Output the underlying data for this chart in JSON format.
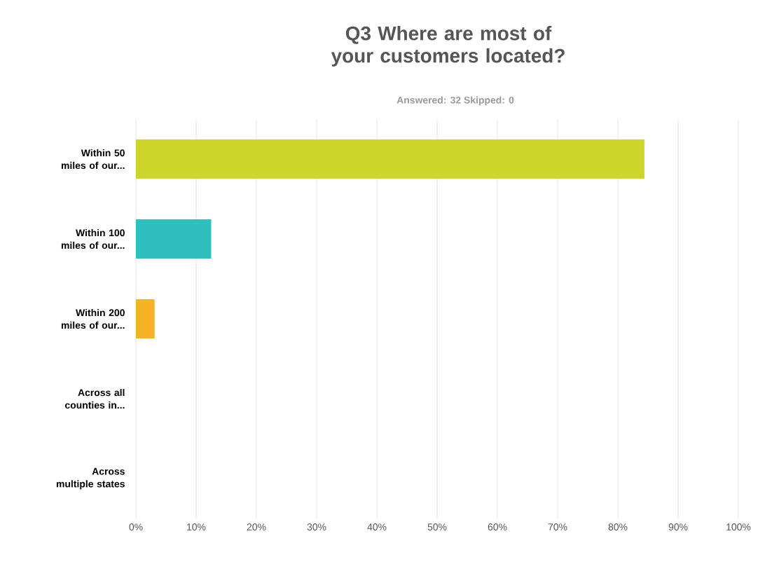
{
  "chart_data": {
    "type": "bar",
    "orientation": "horizontal",
    "title": "Q3 Where are most of your customers located?",
    "subtitle": "Answered: 32    Skipped: 0",
    "categories": [
      "Within 50 miles of our...",
      "Within 100 miles of our...",
      "Within 200 miles of our...",
      "Across all counties in...",
      "Across multiple states"
    ],
    "values": [
      84.4,
      12.5,
      3.1,
      0,
      0
    ],
    "colors": [
      "#cdd52a",
      "#30bfbf",
      "#f5b325",
      "#999999",
      "#999999"
    ],
    "xlim": [
      0,
      100
    ],
    "xticks": [
      {
        "value": 0,
        "label": "0%"
      },
      {
        "value": 10,
        "label": "10%"
      },
      {
        "value": 20,
        "label": "20%"
      },
      {
        "value": 30,
        "label": "30%"
      },
      {
        "value": 40,
        "label": "40%"
      },
      {
        "value": 50,
        "label": "50%"
      },
      {
        "value": 60,
        "label": "60%"
      },
      {
        "value": 70,
        "label": "70%"
      },
      {
        "value": 80,
        "label": "80%"
      },
      {
        "value": 90,
        "label": "90%"
      },
      {
        "value": 100,
        "label": "100%"
      }
    ],
    "grid": "x"
  }
}
